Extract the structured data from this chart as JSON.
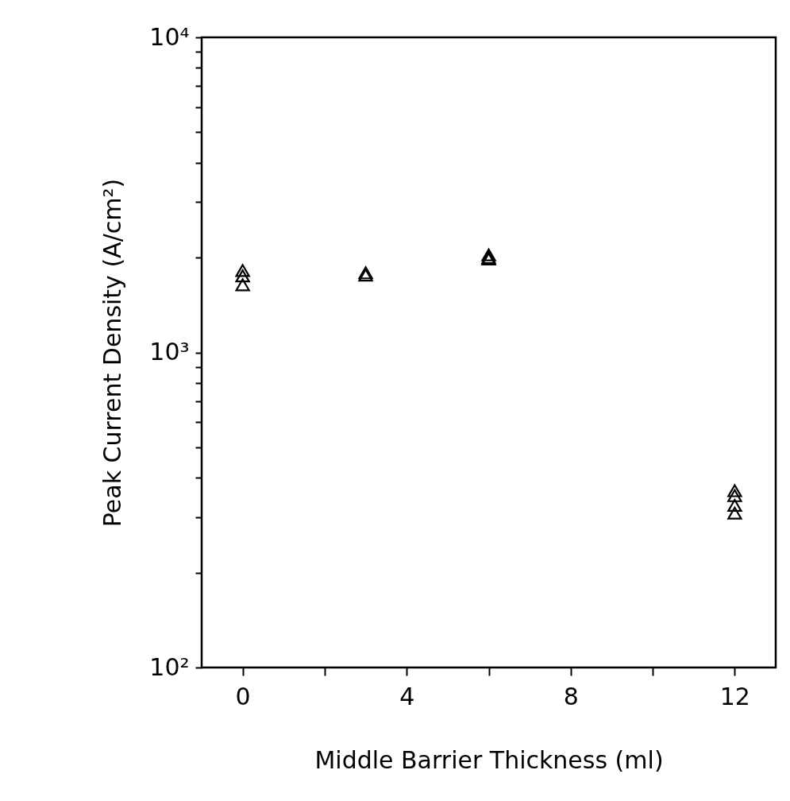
{
  "chart_data": {
    "type": "scatter",
    "xlabel": "Middle Barrier Thickness (ml)",
    "ylabel": "Peak Current Density (A/cm²)",
    "x": [
      0,
      0,
      0,
      3,
      3,
      6,
      6,
      6,
      12,
      12,
      12,
      12
    ],
    "series": [
      {
        "color": "#000000",
        "values": [
          1820,
          1750,
          1640,
          1790,
          1760,
          2040,
          2000,
          1980,
          364,
          351,
          327,
          309
        ]
      }
    ],
    "marker": "triangle",
    "log": "y",
    "grid": false,
    "xlim": [
      -1,
      13
    ],
    "xticks": [
      0,
      {
        "value": 2,
        "label": null
      },
      4,
      {
        "value": 6,
        "label": null
      },
      8,
      {
        "value": 10,
        "label": null
      },
      12
    ],
    "ylim": [
      100,
      10000
    ],
    "yticks": [
      {
        "value": 100,
        "label": "10²"
      },
      {
        "value": 200,
        "label": null
      },
      {
        "value": 300,
        "label": null
      },
      {
        "value": 400,
        "label": null
      },
      {
        "value": 500,
        "label": null
      },
      {
        "value": 600,
        "label": null
      },
      {
        "value": 700,
        "label": null
      },
      {
        "value": 800,
        "label": null
      },
      {
        "value": 900,
        "label": null
      },
      {
        "value": 1000,
        "label": "10³"
      },
      {
        "value": 2000,
        "label": null
      },
      {
        "value": 3000,
        "label": null
      },
      {
        "value": 4000,
        "label": null
      },
      {
        "value": 5000,
        "label": null
      },
      {
        "value": 6000,
        "label": null
      },
      {
        "value": 7000,
        "label": null
      },
      {
        "value": 8000,
        "label": null
      },
      {
        "value": 9000,
        "label": null
      },
      {
        "value": 10000,
        "label": "10⁴"
      }
    ]
  }
}
